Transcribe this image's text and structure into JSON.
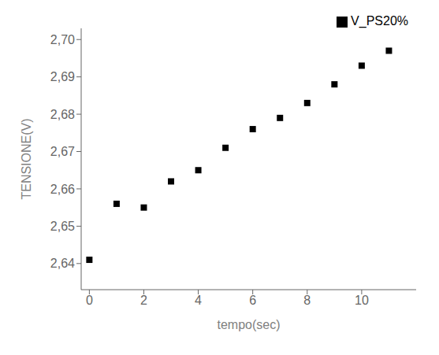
{
  "chart_data": {
    "type": "scatter",
    "xlabel": "tempo(sec)",
    "ylabel": "TENSIONE(V)",
    "x": [
      0,
      1,
      2,
      3,
      4,
      5,
      6,
      7,
      8,
      9,
      10,
      11
    ],
    "series": [
      {
        "name": "V_PS20%",
        "color": "black",
        "marker": "square",
        "values": [
          2.641,
          2.656,
          2.655,
          2.662,
          2.665,
          2.671,
          2.676,
          2.679,
          2.683,
          2.688,
          2.693,
          2.697
        ]
      }
    ],
    "xlim": [
      -0.3,
      12.0
    ],
    "ylim": [
      2.633,
      2.703
    ],
    "xticks": [
      0,
      2,
      4,
      6,
      8,
      10
    ],
    "yticks": [
      {
        "value": 2.64,
        "label": "2,64"
      },
      {
        "value": 2.65,
        "label": "2,65"
      },
      {
        "value": 2.66,
        "label": "2,66"
      },
      {
        "value": 2.67,
        "label": "2,67"
      },
      {
        "value": 2.68,
        "label": "2,68"
      },
      {
        "value": 2.69,
        "label": "2,69"
      },
      {
        "value": 2.7,
        "label": "2,70"
      }
    ],
    "grid": false,
    "legend": "upper right"
  }
}
